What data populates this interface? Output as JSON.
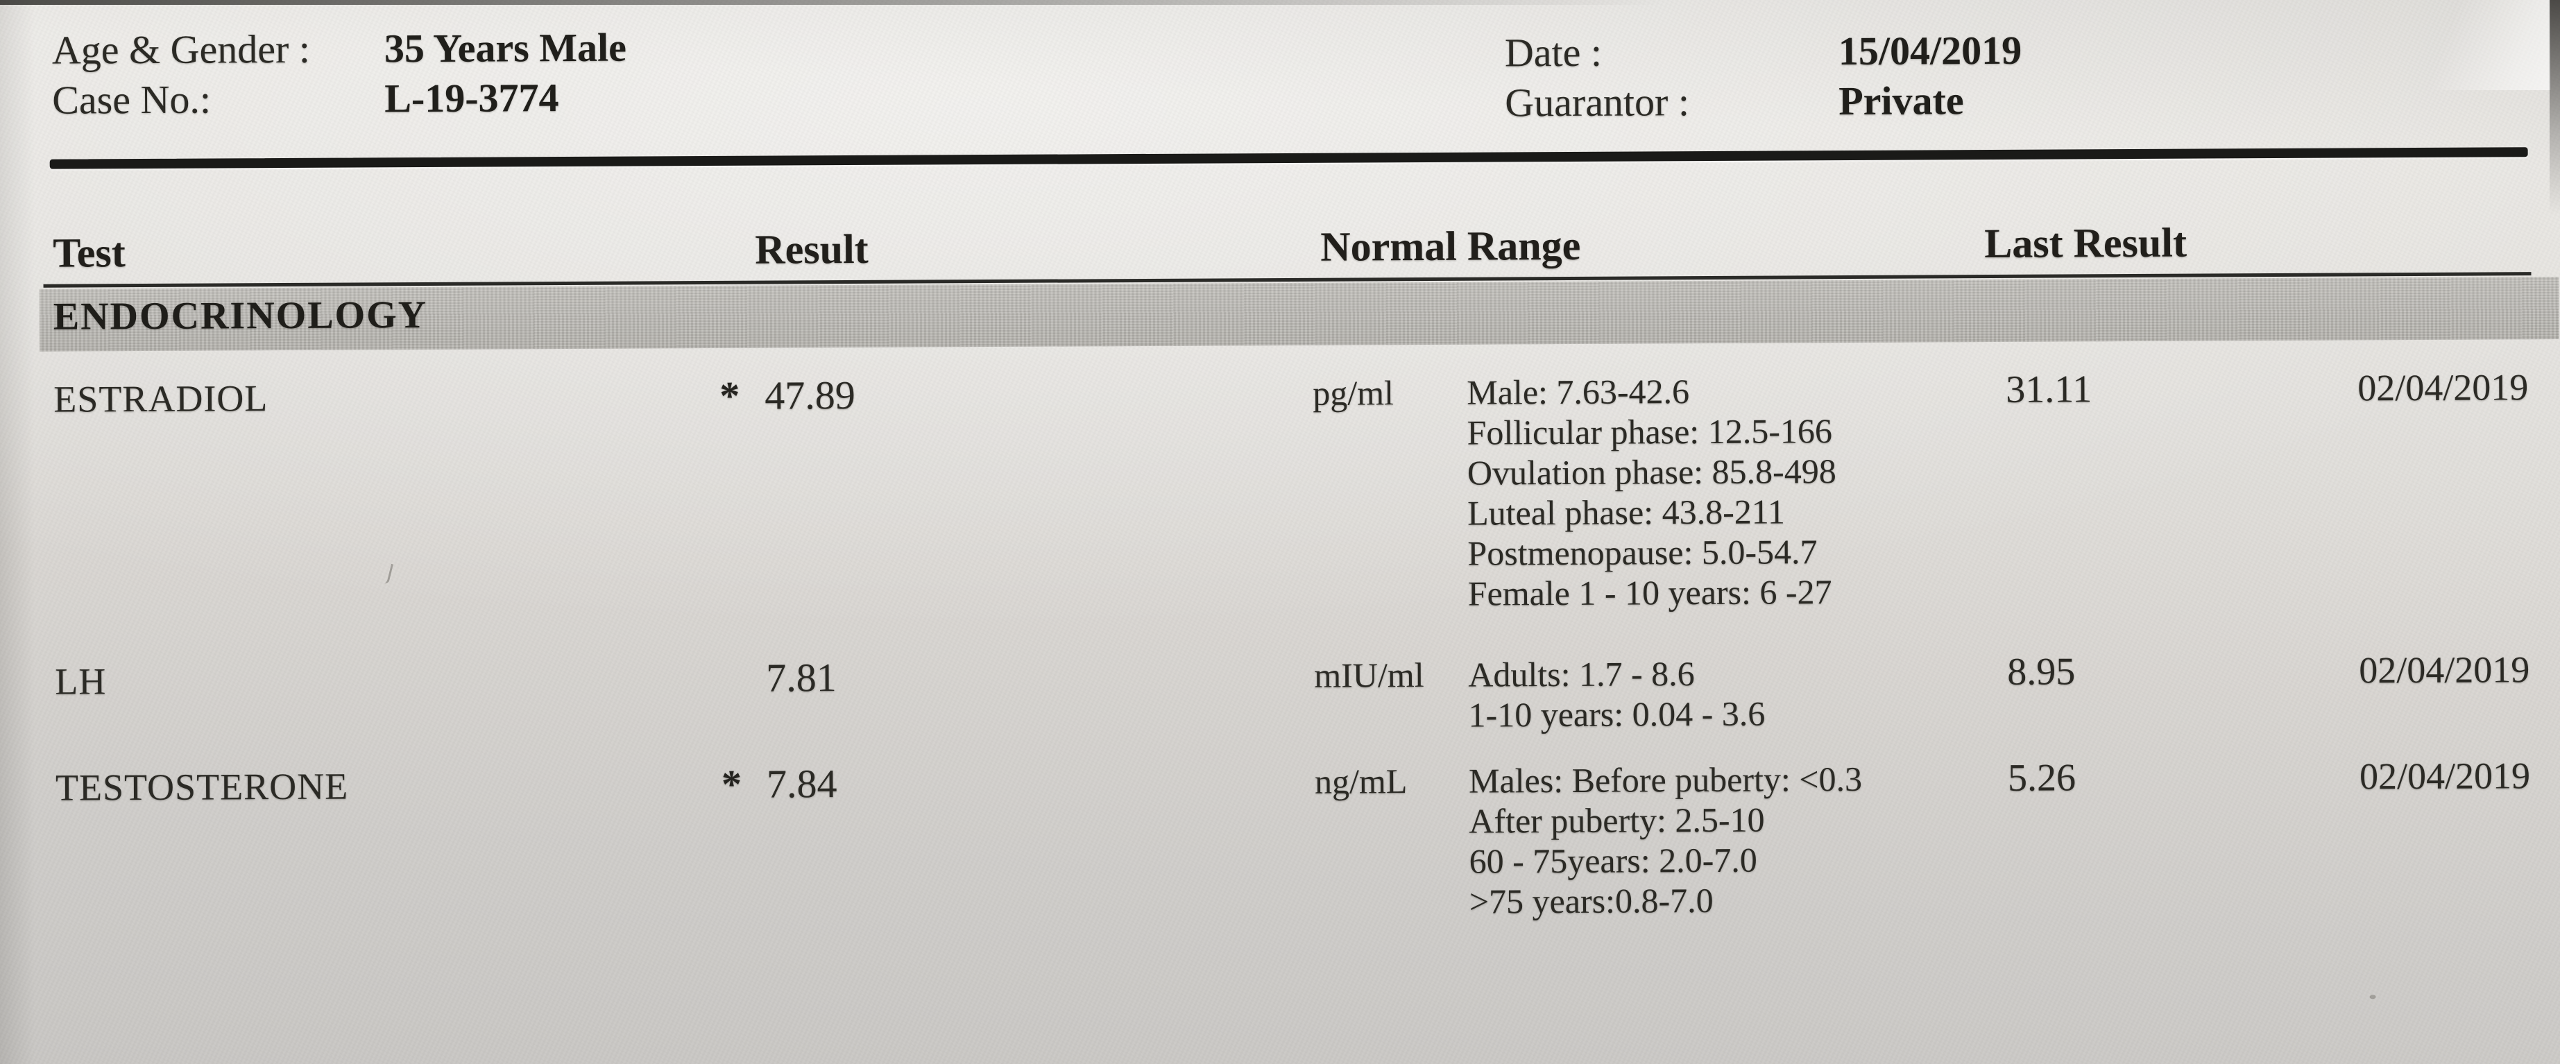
{
  "header": {
    "age_gender_label": "Age & Gender :",
    "age_gender_value": "35 Years Male",
    "case_no_label": "Case No.:",
    "case_no_value": "L-19-3774",
    "date_label": "Date :",
    "date_value": "15/04/2019",
    "guarantor_label": "Guarantor :",
    "guarantor_value": "Private"
  },
  "table": {
    "columns": {
      "test": "Test",
      "result": "Result",
      "normal_range": "Normal Range",
      "last_result": "Last Result"
    },
    "section": "ENDOCRINOLOGY",
    "rows": [
      {
        "test": "ESTRADIOL",
        "flag": "*",
        "result": "47.89",
        "unit": "pg/ml",
        "ranges": [
          "Male: 7.63-42.6",
          "Follicular phase: 12.5-166",
          "Ovulation phase: 85.8-498",
          "Luteal phase: 43.8-211",
          "Postmenopause: 5.0-54.7",
          "Female 1 - 10 years: 6 -27"
        ],
        "last_result": "31.11",
        "last_date": "02/04/2019"
      },
      {
        "test": "LH",
        "flag": "",
        "result": "7.81",
        "unit": "mIU/ml",
        "ranges": [
          "Adults: 1.7 - 8.6",
          "1-10 years: 0.04 - 3.6"
        ],
        "last_result": "8.95",
        "last_date": "02/04/2019"
      },
      {
        "test": "TESTOSTERONE",
        "flag": "*",
        "result": "7.84",
        "unit": "ng/mL",
        "ranges": [
          "Males: Before puberty: <0.3",
          "After puberty: 2.5-10",
          "60 - 75years: 2.0-7.0",
          ">75 years:0.8-7.0"
        ],
        "last_result": "5.26",
        "last_date": "02/04/2019"
      }
    ]
  },
  "colors": {
    "ink": "#2b2a25",
    "paper_light": "#e9e7e3",
    "paper_dark": "#c9c7c4",
    "section_band": "#b8b5b0",
    "rule": "#1a1a18"
  }
}
